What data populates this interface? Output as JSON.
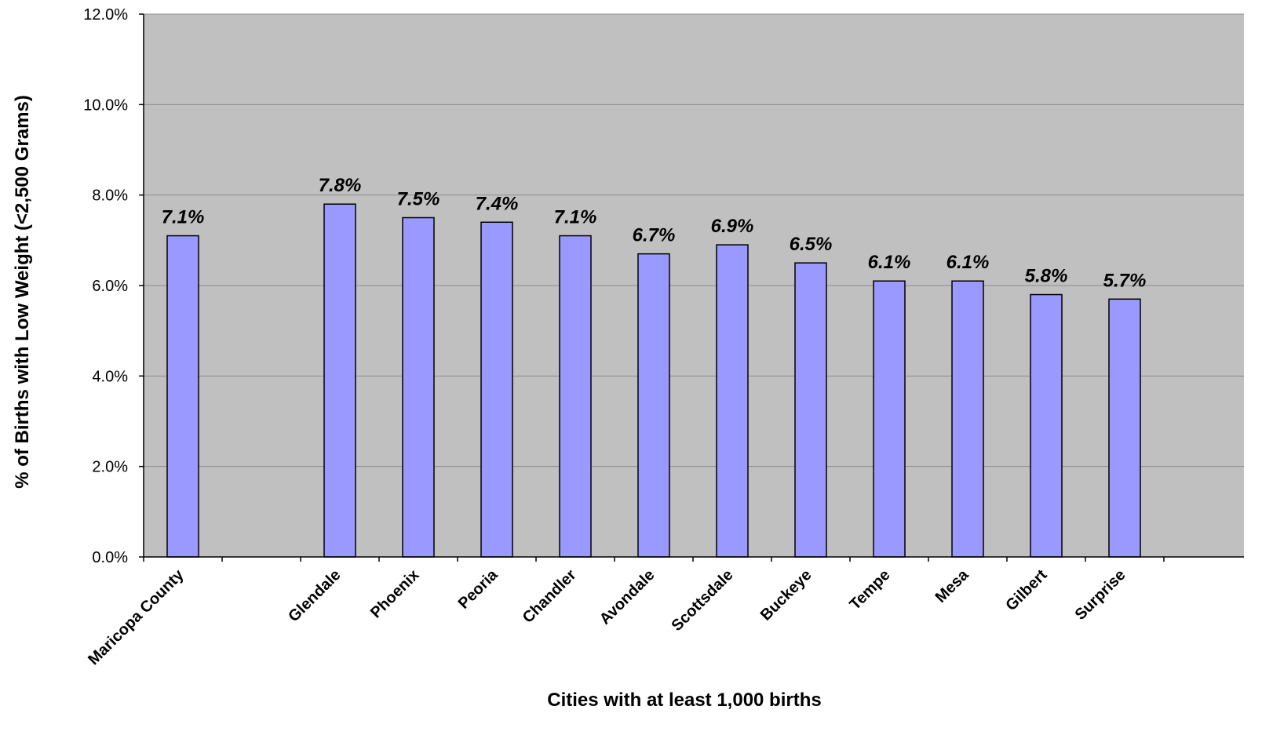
{
  "chart_data": {
    "type": "bar",
    "title": "",
    "xlabel": "Cities with at least 1,000 births",
    "ylabel": "% of Births with Low Weight (<2,500 Grams)",
    "ylim": [
      0,
      12
    ],
    "yticks": [
      0,
      2,
      4,
      6,
      8,
      10,
      12
    ],
    "ytick_labels": [
      "0.0%",
      "2.0%",
      "4.0%",
      "6.0%",
      "8.0%",
      "10.0%",
      "12.0%"
    ],
    "categories": [
      "Maricopa County",
      "",
      "Glendale",
      "Phoenix",
      "Peoria",
      "Chandler",
      "Avondale",
      "Scottsdale",
      "Buckeye",
      "Tempe",
      "Mesa",
      "Gilbert",
      "Surprise"
    ],
    "values": [
      7.1,
      null,
      7.8,
      7.5,
      7.4,
      7.1,
      6.7,
      6.9,
      6.5,
      6.1,
      6.1,
      5.8,
      5.7
    ],
    "data_labels": [
      "7.1%",
      "",
      "7.8%",
      "7.5%",
      "7.4%",
      "7.1%",
      "6.7%",
      "6.9%",
      "6.5%",
      "6.1%",
      "6.1%",
      "5.8%",
      "5.7%"
    ],
    "grid": true,
    "legend": "none",
    "colors": {
      "bar_fill": "#9999ff",
      "bar_stroke": "#000000",
      "plot_background": "#c0c0c0",
      "gridline": "#8c8c8c"
    }
  }
}
